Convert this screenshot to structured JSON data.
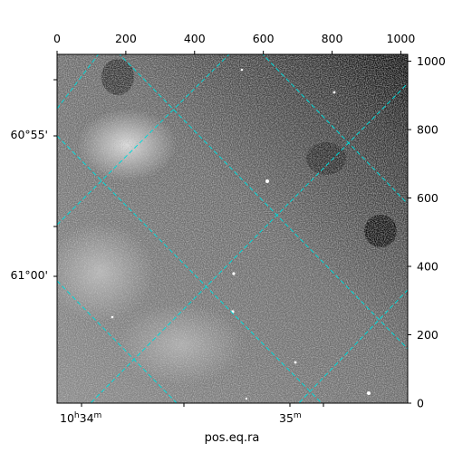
{
  "image": {
    "subject": "astronomical-image-grayscale",
    "colors": {
      "background": "#ffffff",
      "frame": "#000000",
      "grid": "#00d8d8",
      "image_dark": "#000000",
      "image_light": "#ffffff"
    }
  },
  "axes": {
    "x_bottom": {
      "label": "pos.eq.ra",
      "ticks": [
        {
          "main": "10",
          "sup1": "h",
          "minutes": "34",
          "sup2": "m"
        },
        {
          "main": "",
          "sup1": "",
          "minutes": "35",
          "sup2": "m"
        }
      ]
    },
    "y_left": {
      "ticks": [
        "60°55'",
        "61°00'"
      ]
    },
    "x_top": {
      "range": [
        0,
        1020
      ],
      "ticks": [
        "0",
        "200",
        "400",
        "600",
        "800",
        "1000"
      ]
    },
    "y_right": {
      "range": [
        0,
        1020
      ],
      "ticks": [
        "0",
        "200",
        "400",
        "600",
        "800",
        "1000"
      ]
    }
  }
}
